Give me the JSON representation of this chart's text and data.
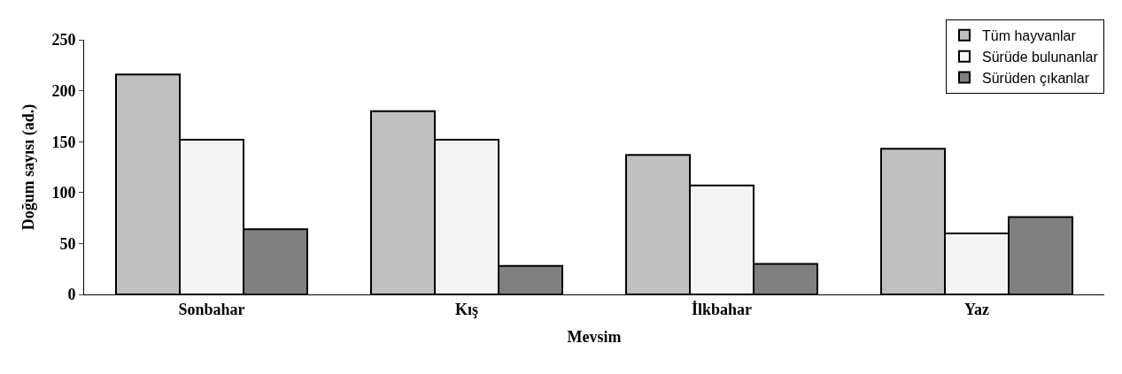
{
  "chart_data": {
    "type": "bar",
    "xlabel": "Mevsim",
    "ylabel": "Doğum sayısı (ad.)",
    "categories": [
      "Sonbahar",
      "Kış",
      "İlkbahar",
      "Yaz"
    ],
    "series": [
      {
        "name": "Tüm hayvanlar",
        "color": "#c0c0c0",
        "values": [
          216,
          180,
          137,
          143
        ]
      },
      {
        "name": "Sürüde bulunanlar",
        "color": "#f4f4f4",
        "values": [
          152,
          152,
          107,
          60
        ]
      },
      {
        "name": "Sürüden çıkanlar",
        "color": "#808080",
        "values": [
          64,
          28,
          30,
          76
        ]
      }
    ],
    "ylim": [
      0,
      250
    ],
    "yticks": [
      0,
      50,
      100,
      150,
      200,
      250
    ],
    "legend": "top right"
  }
}
